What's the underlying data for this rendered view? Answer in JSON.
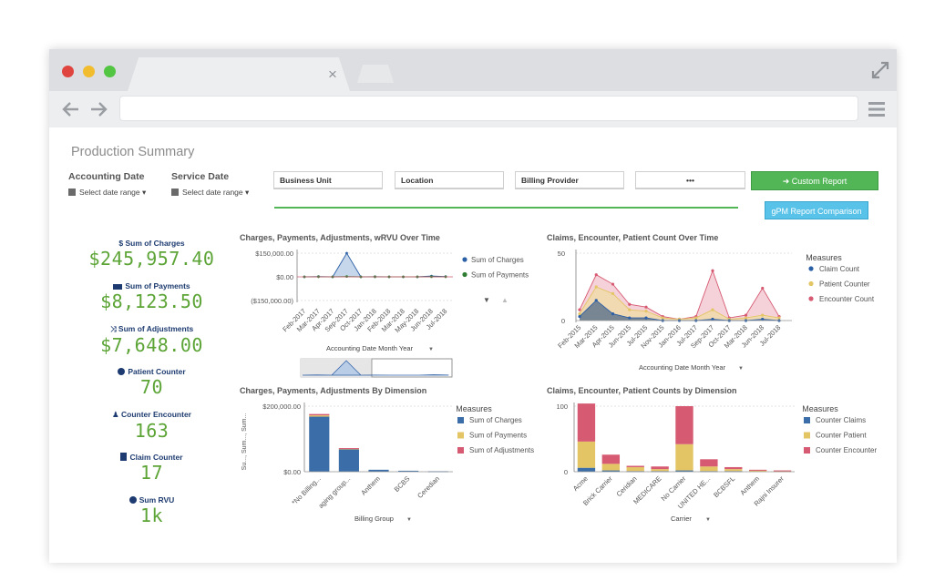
{
  "page": {
    "title": "Production Summary",
    "filters": {
      "accounting_date": {
        "label": "Accounting Date",
        "value": "Select date range"
      },
      "service_date": {
        "label": "Service Date",
        "value": "Select date range"
      },
      "boxes": [
        "Business Unit",
        "Location",
        "Billing Provider",
        "•••"
      ]
    },
    "buttons": {
      "custom_report": "Custom Report",
      "gpm_comparison": "gPM Report Comparison"
    }
  },
  "kpis": [
    {
      "label": "Sum of Charges",
      "value": "$245,957.40",
      "icon": "dollar-icon"
    },
    {
      "label": "Sum of Payments",
      "value": "$8,123.50",
      "icon": "money-icon"
    },
    {
      "label": "Sum of Adjustments",
      "value": "$7,648.00",
      "icon": "shuffle-icon"
    },
    {
      "label": "Patient Counter",
      "value": "70",
      "icon": "users-icon"
    },
    {
      "label": "Counter Encounter",
      "value": "163",
      "icon": "person-icon"
    },
    {
      "label": "Claim Counter",
      "value": "17",
      "icon": "file-icon"
    },
    {
      "label": "Sum RVU",
      "value": "1k",
      "icon": "plus-circle-icon"
    }
  ],
  "colors": {
    "accent_green": "#52b657",
    "kpi_value": "#5ca436",
    "kpi_label": "#1d3b70",
    "info_blue": "#58c2e8"
  },
  "chart_data": [
    {
      "id": "c1",
      "type": "area",
      "title": "Charges, Payments, Adjustments, wRVU Over Time",
      "xlabel": "Accounting Date Month Year",
      "ylabel": "",
      "categories": [
        "Feb-2017",
        "Mar-2017",
        "Apr-2017",
        "Sep-2017",
        "Oct-2017",
        "Jan-2018",
        "Feb-2018",
        "Mar-2018",
        "May-2018",
        "Jun-2018",
        "Jul-2018"
      ],
      "yticks": [
        {
          "v": 150000,
          "label": "$150,000.00"
        },
        {
          "v": 0,
          "label": "$0.00"
        },
        {
          "v": -150000,
          "label": "($150,000.00)"
        }
      ],
      "ylim": [
        -150000,
        150000
      ],
      "legend": "right",
      "series": [
        {
          "name": "Sum of Charges",
          "color": "#2b5fa6",
          "values": [
            0,
            2000,
            0,
            150000,
            0,
            1000,
            0,
            0,
            0,
            5000,
            2000
          ]
        },
        {
          "name": "Sum of Payments",
          "color": "#2e7d32",
          "values": [
            0,
            500,
            0,
            2000,
            0,
            500,
            0,
            0,
            0,
            1000,
            500
          ]
        }
      ],
      "nav_arrows": [
        "▼",
        "▲"
      ]
    },
    {
      "id": "c2",
      "type": "area",
      "title": "Claims, Encounter, Patient Count Over Time",
      "xlabel": "Accounting Date Month Year",
      "ylabel": "",
      "legend_title": "Measures",
      "categories": [
        "Feb-2015",
        "Mar-2015",
        "Apr-2015",
        "Jun-2015",
        "Jul-2015",
        "Nov-2015",
        "Jan-2016",
        "Jul-2017",
        "Sep-2017",
        "Oct-2017",
        "Mar-2018",
        "Jun-2018",
        "Jul-2018"
      ],
      "yticks": [
        {
          "v": 50,
          "label": "50"
        },
        {
          "v": 0,
          "label": "0"
        }
      ],
      "ylim": [
        0,
        50
      ],
      "legend": "right",
      "series": [
        {
          "name": "Claim Count",
          "color": "#2b5fa6",
          "values": [
            3,
            15,
            5,
            2,
            2,
            0,
            0,
            0,
            1,
            0,
            0,
            1,
            0
          ]
        },
        {
          "name": "Patient Counter",
          "color": "#e4c565",
          "values": [
            5,
            25,
            20,
            8,
            7,
            2,
            1,
            2,
            8,
            1,
            2,
            4,
            2
          ]
        },
        {
          "name": "Encounter Count",
          "color": "#d65a72",
          "values": [
            8,
            34,
            27,
            12,
            10,
            3,
            1,
            3,
            37,
            2,
            4,
            24,
            3
          ]
        }
      ]
    },
    {
      "id": "c3",
      "type": "bar",
      "title": "Charges, Payments, Adjustments By Dimension",
      "xlabel": "Billing Group",
      "ylabel": "Su..., Sum..., Sum...",
      "legend_title": "Measures",
      "categories": [
        "*No Billing...",
        "aging group...",
        "Anthem",
        "BCBS",
        "Ceredian"
      ],
      "yticks": [
        {
          "v": 200000,
          "label": "$200,000.00"
        },
        {
          "v": 0,
          "label": "$0.00"
        }
      ],
      "ylim": [
        0,
        200000
      ],
      "legend": "right",
      "series": [
        {
          "name": "Sum of Charges",
          "color": "#3b6ea8",
          "values": [
            168000,
            68000,
            6000,
            3000,
            1500
          ]
        },
        {
          "name": "Sum of Payments",
          "color": "#e4c565",
          "values": [
            4000,
            3000,
            0,
            0,
            0
          ]
        },
        {
          "name": "Sum of Adjustments",
          "color": "#d65a72",
          "values": [
            4000,
            1000,
            0,
            0,
            0
          ]
        }
      ]
    },
    {
      "id": "c4",
      "type": "bar",
      "title": "Claims, Encounter, Patient Counts by Dimension",
      "xlabel": "Carrier",
      "ylabel": "",
      "legend_title": "Measures",
      "categories": [
        "Acme",
        "Brick Carrier",
        "Ceridian",
        "MEDICARE",
        "No Carrier",
        "UNITED HE...",
        "BCBSFL",
        "Anthem",
        "Rajni Insurer"
      ],
      "yticks": [
        {
          "v": 100,
          "label": "100"
        },
        {
          "v": 0,
          "label": "0"
        }
      ],
      "ylim": [
        0,
        100
      ],
      "legend": "right",
      "series": [
        {
          "name": "Counter Claims",
          "color": "#3b6ea8",
          "values": [
            6,
            2,
            1,
            1,
            2,
            1,
            1,
            0,
            0
          ]
        },
        {
          "name": "Counter Patient",
          "color": "#e4c565",
          "values": [
            40,
            10,
            6,
            3,
            40,
            7,
            3,
            2,
            1
          ]
        },
        {
          "name": "Counter Encounter",
          "color": "#d65a72",
          "values": [
            58,
            14,
            2,
            4,
            58,
            11,
            3,
            1,
            1
          ]
        }
      ]
    }
  ]
}
